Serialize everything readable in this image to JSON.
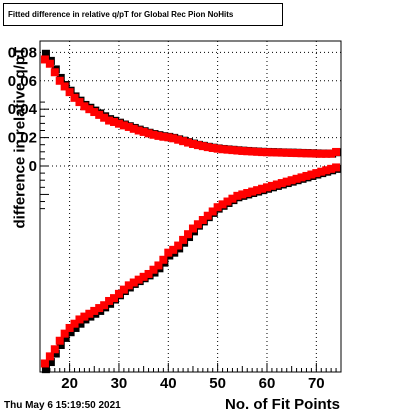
{
  "title": "Fitted difference in relative q/pT for Global Rec Pion NoHits",
  "footer_date": "Thu May  6 15:19:50 2021",
  "chart_data": {
    "type": "scatter",
    "title": "Fitted difference in relative q/pT for Global Rec Pion NoHits",
    "xlabel": "No. of Fit Points",
    "ylabel": "difference in relative q/pT",
    "xlim": [
      14,
      75
    ],
    "ylim": [
      -0.0145,
      0.0088
    ],
    "grid": true,
    "x_ticks": [
      20,
      30,
      40,
      50,
      60,
      70
    ],
    "x_tick_labels": [
      "20",
      "30",
      "40",
      "50",
      "60",
      "70"
    ],
    "y_ticks": [
      0,
      0.02,
      0.04,
      0.06,
      0.08
    ],
    "y_tick_labels": [
      "0",
      "0.02",
      "0.04",
      "0.06",
      "0.08"
    ],
    "x": [
      15,
      16,
      17,
      18,
      19,
      20,
      21,
      22,
      23,
      24,
      25,
      26,
      27,
      28,
      29,
      30,
      31,
      32,
      33,
      34,
      35,
      36,
      37,
      38,
      39,
      40,
      41,
      42,
      43,
      44,
      45,
      46,
      47,
      48,
      49,
      50,
      51,
      52,
      53,
      54,
      55,
      56,
      57,
      58,
      59,
      60,
      61,
      62,
      63,
      64,
      65,
      66,
      67,
      68,
      69,
      70,
      71,
      72,
      73,
      74
    ],
    "series": [
      {
        "color": "#000000",
        "upper": [
          0.0079,
          0.0074,
          0.0068,
          0.0062,
          0.0057,
          0.0053,
          0.0049,
          0.0046,
          0.0043,
          0.0041,
          0.0039,
          0.0037,
          0.0035,
          0.0033,
          0.00318,
          0.00305,
          0.00292,
          0.0028,
          0.00268,
          0.00256,
          0.00245,
          0.00234,
          0.00225,
          0.00217,
          0.0021,
          0.00205,
          0.00198,
          0.00188,
          0.00178,
          0.00168,
          0.00158,
          0.00149,
          0.00142,
          0.00135,
          0.00129,
          0.00124,
          0.0012,
          0.00117,
          0.00114,
          0.00111,
          0.00108,
          0.00106,
          0.00104,
          0.00102,
          0.001,
          0.00099,
          0.00098,
          0.00097,
          0.00096,
          0.00095,
          0.00094,
          0.00093,
          0.00092,
          0.00091,
          0.0009,
          0.00089,
          0.00088,
          0.00088,
          0.00087,
          0.00097
        ],
        "lower": [
          -0.0143,
          -0.0138,
          -0.0132,
          -0.0126,
          -0.0121,
          -0.0117,
          -0.0114,
          -0.0111,
          -0.0108,
          -0.0106,
          -0.0104,
          -0.0102,
          -0.00995,
          -0.0097,
          -0.0094,
          -0.0091,
          -0.0088,
          -0.00855,
          -0.0083,
          -0.0081,
          -0.0079,
          -0.0077,
          -0.0075,
          -0.0072,
          -0.0068,
          -0.0063,
          -0.0061,
          -0.0058,
          -0.0054,
          -0.005,
          -0.0046,
          -0.0042,
          -0.0039,
          -0.0036,
          -0.0033,
          -0.003,
          -0.0028,
          -0.0026,
          -0.0024,
          -0.0022,
          -0.0021,
          -0.002,
          -0.0019,
          -0.0018,
          -0.0017,
          -0.0016,
          -0.0015,
          -0.0014,
          -0.0013,
          -0.0012,
          -0.0011,
          -0.001,
          -0.0009,
          -0.0008,
          -0.0007,
          -0.0006,
          -0.0005,
          -0.0004,
          -0.0003,
          -0.0002
        ]
      },
      {
        "color": "#ff0000",
        "upper": [
          0.0075,
          0.0072,
          0.0066,
          0.006,
          0.0056,
          0.0052,
          0.0048,
          0.0045,
          0.0042,
          0.004,
          0.0038,
          0.0036,
          0.0034,
          0.0032,
          0.0031,
          0.00298,
          0.00286,
          0.00275,
          0.00262,
          0.0025,
          0.0024,
          0.0023,
          0.0022,
          0.00212,
          0.00206,
          0.00202,
          0.00195,
          0.00185,
          0.00175,
          0.00165,
          0.00155,
          0.00147,
          0.0014,
          0.00133,
          0.00127,
          0.00122,
          0.00118,
          0.00115,
          0.00112,
          0.00109,
          0.00106,
          0.00104,
          0.00102,
          0.001,
          0.00098,
          0.00097,
          0.00096,
          0.00095,
          0.00094,
          0.00093,
          0.00092,
          0.00091,
          0.0009,
          0.00089,
          0.00088,
          0.00087,
          0.00086,
          0.00086,
          0.00087,
          0.00099
        ],
        "lower": [
          -0.0139,
          -0.0134,
          -0.0129,
          -0.0123,
          -0.0118,
          -0.0114,
          -0.0111,
          -0.0108,
          -0.0106,
          -0.0104,
          -0.0102,
          -0.01,
          -0.0098,
          -0.0095,
          -0.0093,
          -0.009,
          -0.0087,
          -0.0084,
          -0.0082,
          -0.008,
          -0.0078,
          -0.0076,
          -0.0073,
          -0.007,
          -0.0066,
          -0.0061,
          -0.0059,
          -0.0056,
          -0.0052,
          -0.0048,
          -0.0044,
          -0.0041,
          -0.0038,
          -0.0035,
          -0.0032,
          -0.0029,
          -0.0027,
          -0.0025,
          -0.0023,
          -0.0021,
          -0.002,
          -0.0019,
          -0.0018,
          -0.0017,
          -0.0016,
          -0.0015,
          -0.0014,
          -0.0013,
          -0.0012,
          -0.0011,
          -0.001,
          -0.0009,
          -0.0008,
          -0.0007,
          -0.0006,
          -0.0005,
          -0.0004,
          -0.0003,
          -0.0002,
          -0.0001
        ]
      }
    ]
  }
}
